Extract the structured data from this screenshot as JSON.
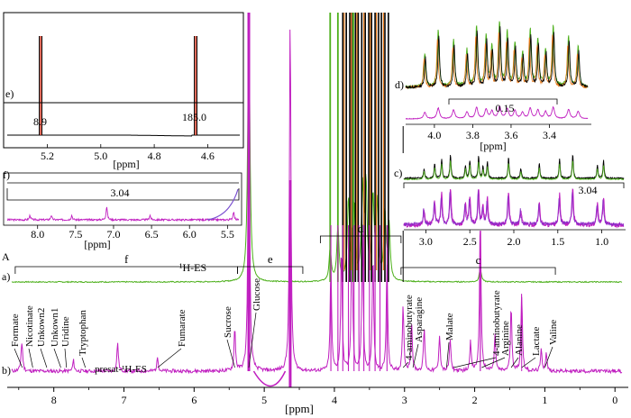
{
  "figure": {
    "panel_letter": "A",
    "trace_labels": {
      "a": "a)",
      "b": "b)"
    },
    "region_labels": [
      "f",
      "e",
      "d",
      "c"
    ],
    "es_label": "¹H-ES",
    "presat_label": "presat-¹H-ES",
    "xlabel": "[ppm]"
  },
  "chart_data": [
    {
      "type": "line",
      "id": "main",
      "xlabel": "[ppm]",
      "xlim": [
        8.6,
        -0.1
      ],
      "x_reversed": true,
      "ticks": [
        8,
        7,
        6,
        5,
        4,
        3,
        2,
        1,
        0
      ],
      "tick_labels": [
        "8",
        "7",
        "6",
        "5",
        "4",
        "3",
        "2",
        "1",
        "0"
      ],
      "series": [
        {
          "key": "a",
          "color": "#4caf1a",
          "peaks": [
            [
              5.22,
              1.0
            ],
            [
              4.06,
              0.12
            ],
            [
              3.95,
              0.2
            ],
            [
              3.8,
              0.3
            ],
            [
              3.72,
              0.28
            ],
            [
              3.6,
              0.33
            ],
            [
              3.55,
              0.35
            ],
            [
              3.45,
              0.3
            ],
            [
              3.39,
              0.28
            ],
            [
              3.28,
              0.25
            ],
            [
              3.22,
              0.2
            ],
            [
              1.92,
              0.05
            ]
          ]
        },
        {
          "key": "b",
          "color": "#c01fc0",
          "peaks": [
            [
              8.46,
              0.05
            ],
            [
              8.45,
              0.04
            ],
            [
              7.72,
              0.03
            ],
            [
              7.09,
              0.08
            ],
            [
              6.52,
              0.04
            ],
            [
              5.42,
              0.12
            ],
            [
              5.22,
              1.0
            ],
            [
              4.63,
              1.0
            ],
            [
              4.05,
              0.3
            ],
            [
              3.9,
              0.35
            ],
            [
              3.75,
              0.4
            ],
            [
              3.6,
              0.38
            ],
            [
              3.45,
              0.33
            ],
            [
              3.25,
              0.3
            ],
            [
              3.02,
              0.18
            ],
            [
              2.9,
              0.14
            ],
            [
              2.72,
              0.12
            ],
            [
              2.5,
              0.1
            ],
            [
              2.35,
              0.09
            ],
            [
              2.06,
              0.08
            ],
            [
              1.92,
              0.45
            ],
            [
              1.71,
              0.1
            ],
            [
              1.48,
              0.18
            ],
            [
              1.33,
              0.22
            ],
            [
              1.05,
              0.06
            ],
            [
              0.98,
              0.05
            ]
          ]
        }
      ],
      "black_peaks": [
        3.88,
        3.83,
        3.78,
        3.74,
        3.7,
        3.66,
        3.61,
        3.56,
        3.51,
        3.47,
        3.42,
        3.37,
        3.33,
        3.28,
        3.23
      ],
      "orange_peaks": [
        3.86,
        3.76,
        3.68,
        3.58,
        3.49,
        3.4,
        3.3
      ],
      "brackets": [
        {
          "label": "f",
          "from": 8.55,
          "to": 5.38
        },
        {
          "label": "e",
          "from": 5.38,
          "to": 4.45
        },
        {
          "label": "d",
          "from": 4.2,
          "to": 3.05
        },
        {
          "label": "c",
          "from": 3.05,
          "to": 0.85
        }
      ],
      "assignments": [
        {
          "label": "Formate",
          "ppm": 8.45
        },
        {
          "label": "Nicotinate",
          "ppm": 8.3
        },
        {
          "label": "Unkown2",
          "ppm": 8.1
        },
        {
          "label": "Unkown1",
          "ppm": 7.9
        },
        {
          "label": "Uridine",
          "ppm": 7.82
        },
        {
          "label": "Tryptophan",
          "ppm": 7.55
        },
        {
          "label": "Fumarate",
          "ppm": 6.52
        },
        {
          "label": "Sucrose",
          "ppm": 5.42
        },
        {
          "label": "Glucose",
          "ppm": 5.22
        },
        {
          "label": "4-aminobutyrate",
          "ppm": 3.02
        },
        {
          "label": "Asparagine",
          "ppm": 2.88
        },
        {
          "label": "Malate",
          "ppm": 2.4
        },
        {
          "label": "4-aminobutyrate",
          "ppm": 2.3
        },
        {
          "label": "Arginine",
          "ppm": 1.9
        },
        {
          "label": "Alanine",
          "ppm": 1.48
        },
        {
          "label": "Lactate",
          "ppm": 1.33
        },
        {
          "label": "Valine",
          "ppm": 1.0
        }
      ]
    },
    {
      "type": "line",
      "id": "inset-e",
      "label": "e)",
      "xlabel": "[ppm]",
      "xlim": [
        5.35,
        4.48
      ],
      "ticks": [
        5.2,
        5.0,
        4.8,
        4.6
      ],
      "tick_labels": [
        "5.2",
        "5.0",
        "4.8",
        "4.6"
      ],
      "peaks": [
        5.225,
        4.645
      ],
      "annotations": [
        "8.9",
        "185.0"
      ]
    },
    {
      "type": "line",
      "id": "inset-f",
      "label": "f)",
      "xlabel": "[ppm]",
      "xlim": [
        8.4,
        5.35
      ],
      "ticks": [
        8.0,
        7.5,
        7.0,
        6.5,
        6.0,
        5.5
      ],
      "tick_labels": [
        "8.0",
        "7.5",
        "7.0",
        "6.5",
        "6.0",
        "5.5"
      ],
      "scale_label": "3.04",
      "peaks": [
        8.45,
        8.1,
        7.82,
        7.55,
        7.09,
        6.52,
        5.42
      ]
    },
    {
      "type": "line",
      "id": "inset-d",
      "label": "d)",
      "xlabel": "[ppm]",
      "xlim": [
        4.15,
        3.2
      ],
      "ticks": [
        4.0,
        3.8,
        3.6,
        3.4
      ],
      "tick_labels": [
        "4.0",
        "3.8",
        "3.6",
        "3.4"
      ],
      "scale_label": "0.15",
      "peaks": [
        4.05,
        3.98,
        3.9,
        3.83,
        3.78,
        3.73,
        3.7,
        3.66,
        3.62,
        3.58,
        3.54,
        3.5,
        3.46,
        3.42,
        3.38,
        3.3,
        3.25
      ]
    },
    {
      "type": "line",
      "id": "inset-c",
      "label": "c)",
      "xlabel": "[ppm]",
      "xlim": [
        3.25,
        0.75
      ],
      "ticks": [
        3.0,
        2.5,
        2.0,
        1.5,
        1.0
      ],
      "tick_labels": [
        "3.0",
        "2.5",
        "2.0",
        "1.5",
        "1.0"
      ],
      "scale_label": "3.04",
      "peaks": [
        3.02,
        2.9,
        2.82,
        2.72,
        2.55,
        2.5,
        2.4,
        2.35,
        2.3,
        2.06,
        1.92,
        1.71,
        1.48,
        1.33,
        1.05,
        0.98
      ]
    }
  ]
}
